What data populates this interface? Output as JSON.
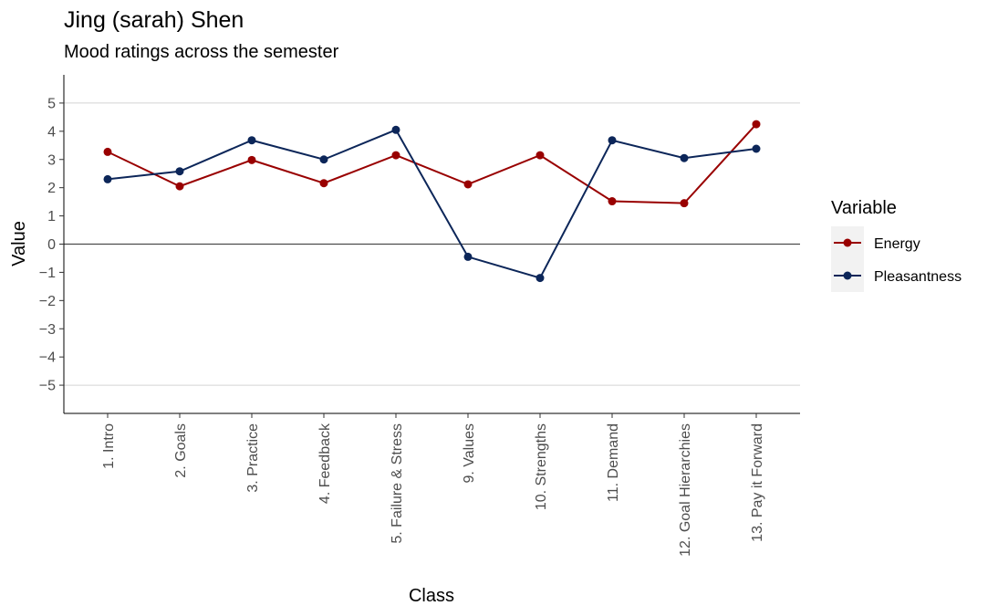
{
  "chart_data": {
    "type": "line",
    "title": "Jing (sarah) Shen",
    "subtitle": "Mood ratings across the semester",
    "xlabel": "Class",
    "ylabel": "Value",
    "categories": [
      "1. Intro",
      "2. Goals",
      "3. Practice",
      "4. Feedback",
      "5. Failure & Stress",
      "9. Values",
      "10. Strengths",
      "11. Demand",
      "12. Goal Hierarchies",
      "13. Pay it Forward"
    ],
    "ylim": [
      -6,
      6
    ],
    "yticks": [
      -5,
      -4,
      -3,
      -2,
      -1,
      0,
      1,
      2,
      3,
      4,
      5
    ],
    "ytick_labels": [
      "−5",
      "−4",
      "−3",
      "−2",
      "−1",
      "0",
      "1",
      "2",
      "3",
      "4",
      "5"
    ],
    "gridlines_at": [
      -5,
      5
    ],
    "reference_line": 0,
    "legend": {
      "title": "Variable",
      "position": "right"
    },
    "series": [
      {
        "name": "Energy",
        "color": "#990000",
        "values": [
          3.27,
          2.05,
          2.98,
          2.16,
          3.15,
          2.12,
          3.15,
          1.52,
          1.45,
          4.25
        ]
      },
      {
        "name": "Pleasantness",
        "color": "#0c2659",
        "values": [
          2.3,
          2.58,
          3.68,
          3.0,
          4.05,
          -0.45,
          -1.2,
          3.68,
          3.05,
          3.38
        ]
      }
    ]
  }
}
